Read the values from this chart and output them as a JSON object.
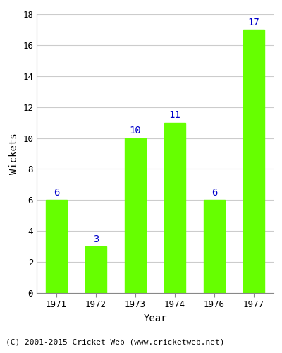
{
  "categories": [
    "1971",
    "1972",
    "1973",
    "1974",
    "1976",
    "1977"
  ],
  "values": [
    6,
    3,
    10,
    11,
    6,
    17
  ],
  "bar_color": "#66ff00",
  "bar_edge_color": "#66ff00",
  "label_color": "#0000cc",
  "xlabel": "Year",
  "ylabel": "Wickets",
  "ylim": [
    0,
    18
  ],
  "yticks": [
    0,
    2,
    4,
    6,
    8,
    10,
    12,
    14,
    16,
    18
  ],
  "footer_text": "(C) 2001-2015 Cricket Web (www.cricketweb.net)",
  "label_fontsize": 10,
  "axis_label_fontsize": 10,
  "tick_fontsize": 9,
  "footer_fontsize": 8,
  "grid_color": "#cccccc"
}
